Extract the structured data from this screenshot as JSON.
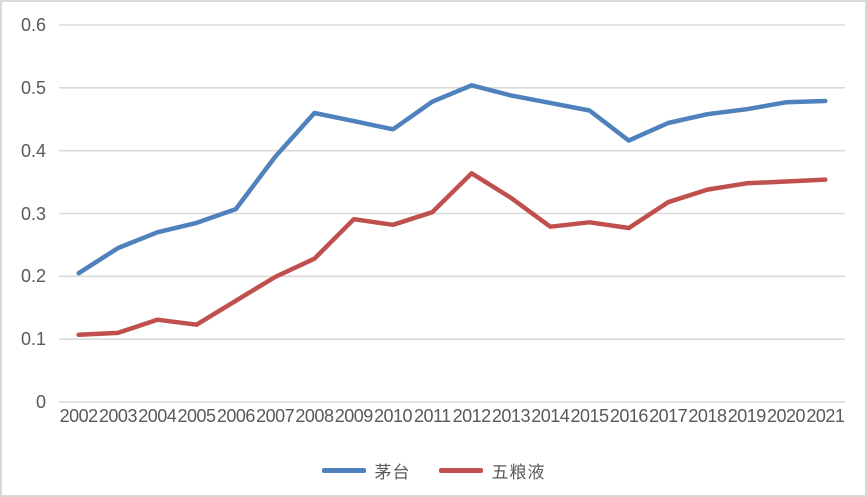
{
  "chart_data": {
    "type": "line",
    "title": "",
    "xlabel": "",
    "ylabel": "",
    "categories": [
      "2002",
      "2003",
      "2004",
      "2005",
      "2006",
      "2007",
      "2008",
      "2009",
      "2010",
      "2011",
      "2012",
      "2013",
      "2014",
      "2015",
      "2016",
      "2017",
      "2018",
      "2019",
      "2020",
      "2021"
    ],
    "series": [
      {
        "name": "茅台",
        "color": "#4F81BD",
        "values": [
          0.205,
          0.245,
          0.27,
          0.285,
          0.307,
          0.39,
          0.46,
          0.447,
          0.434,
          0.478,
          0.504,
          0.488,
          0.476,
          0.464,
          0.416,
          0.444,
          0.458,
          0.466,
          0.477,
          0.479
        ]
      },
      {
        "name": "五粮液",
        "color": "#C0504D",
        "values": [
          0.107,
          0.11,
          0.131,
          0.123,
          0.161,
          0.199,
          0.228,
          0.291,
          0.282,
          0.302,
          0.364,
          0.325,
          0.279,
          0.286,
          0.277,
          0.318,
          0.338,
          0.348,
          0.351,
          0.354
        ]
      }
    ],
    "ylim": [
      0,
      0.6
    ],
    "y_ticks": [
      0,
      0.1,
      0.2,
      0.3,
      0.4,
      0.5,
      0.6
    ],
    "y_tick_labels": [
      "0",
      "0.1",
      "0.2",
      "0.3",
      "0.4",
      "0.5",
      "0.6"
    ],
    "grid": true,
    "legend_position": "bottom",
    "colors": {
      "gridline": "#D9D9D9",
      "axis_text": "#595959",
      "chart_border": "#D9D9D9",
      "background": "#FFFFFF"
    }
  }
}
